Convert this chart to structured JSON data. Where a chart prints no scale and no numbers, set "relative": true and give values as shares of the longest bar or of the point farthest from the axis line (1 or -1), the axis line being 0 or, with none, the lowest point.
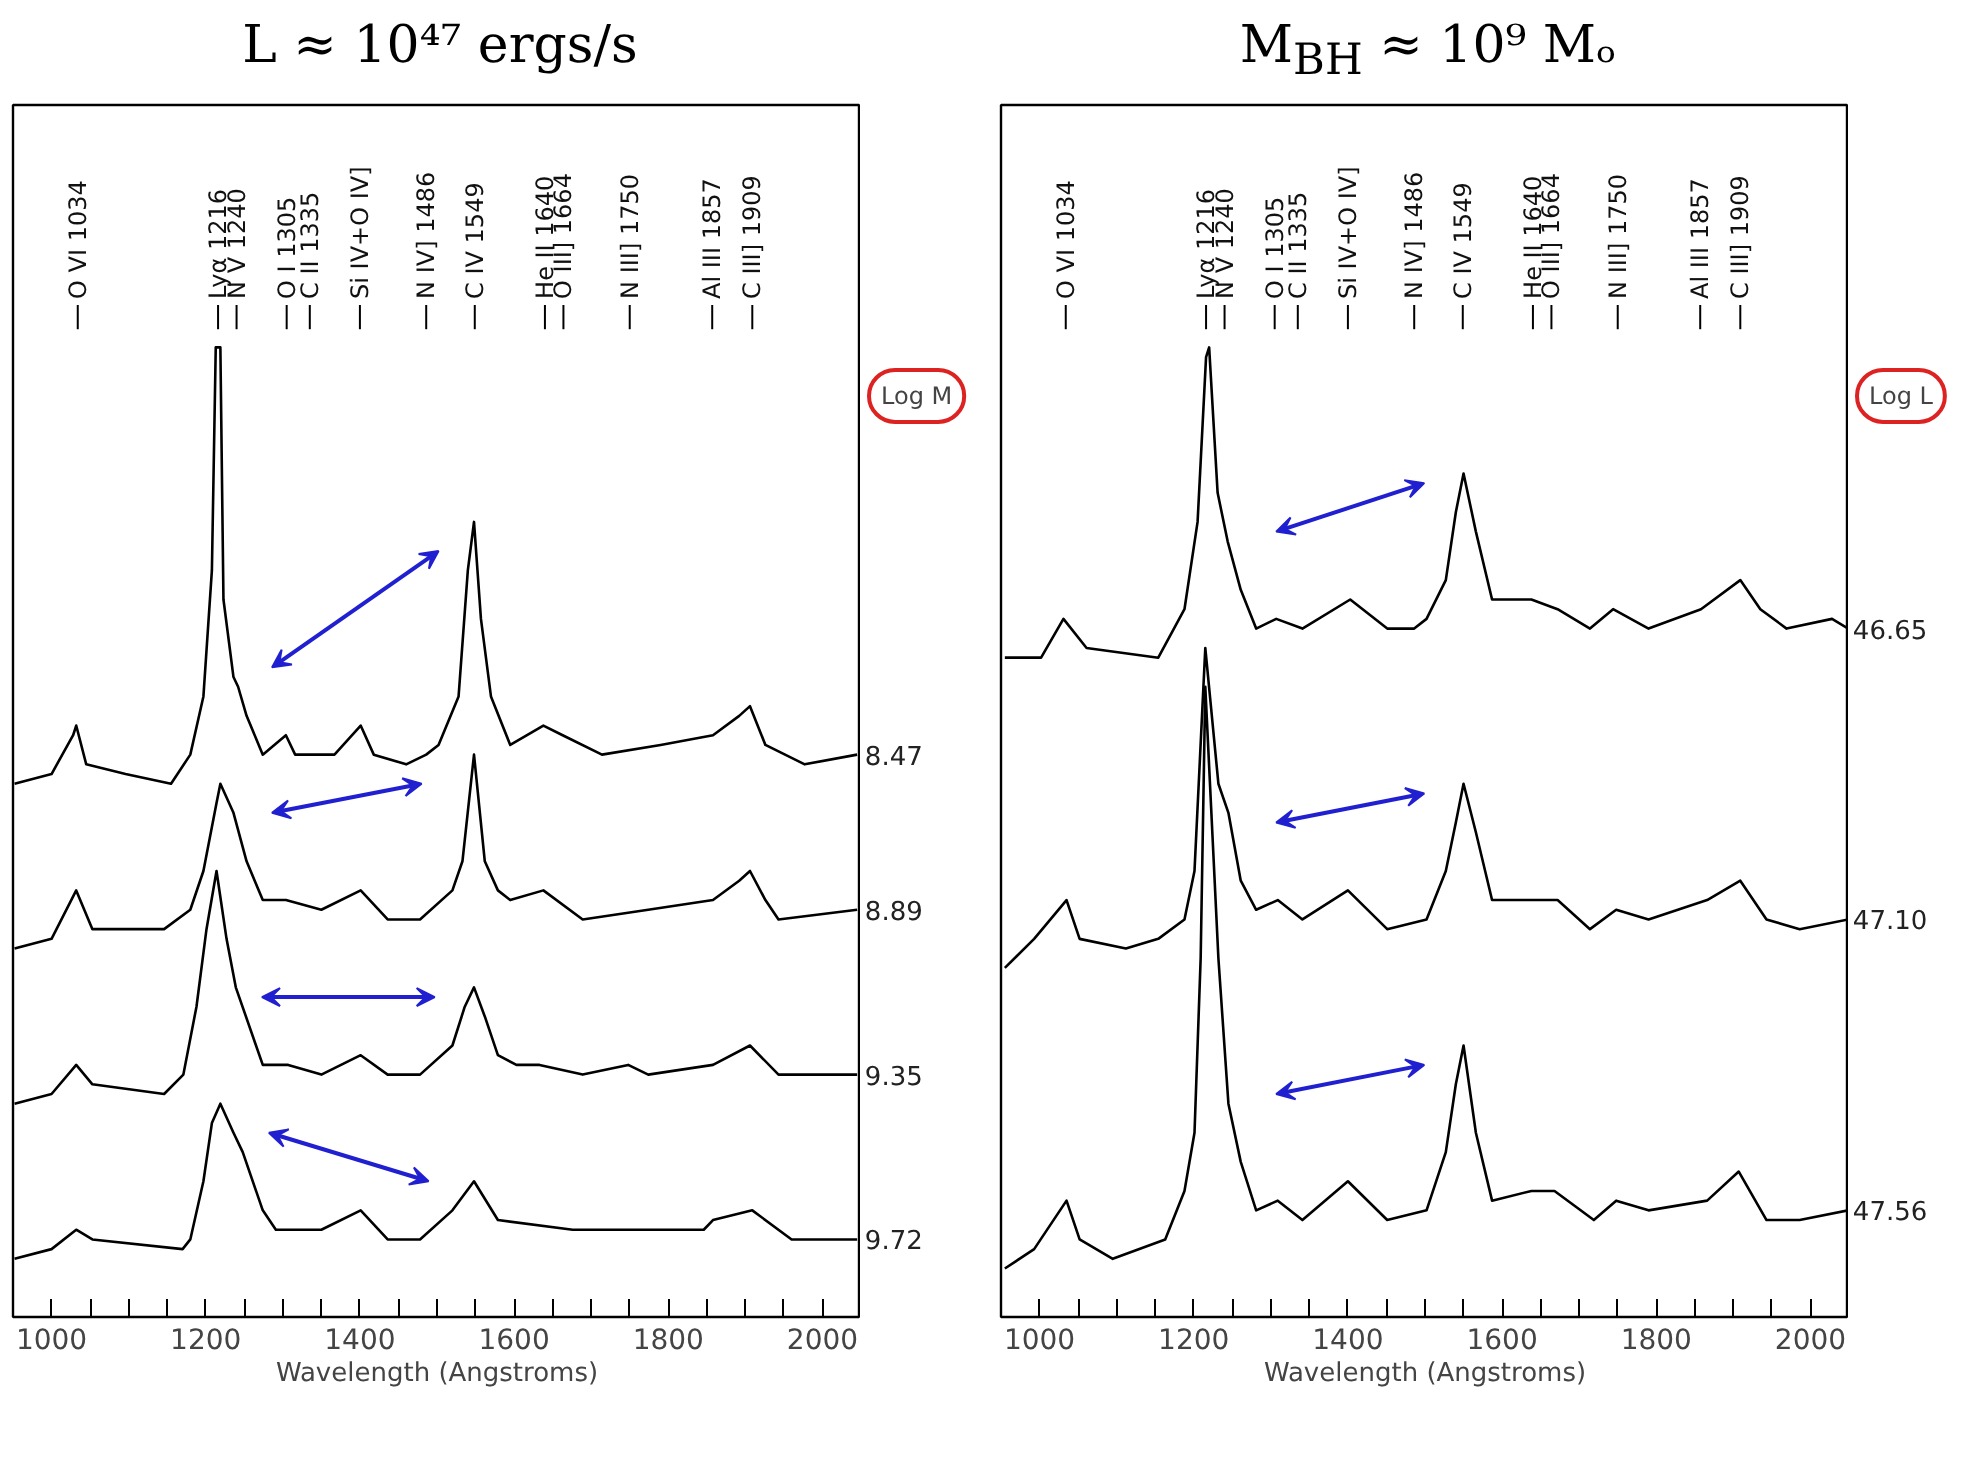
{
  "chart_data": [
    {
      "type": "line",
      "title": "L ≈ 10⁴⁷ ergs/s",
      "xlabel": "Wavelength (Angstroms)",
      "relative": true,
      "xlim": [
        950,
        2050
      ],
      "xticks": [
        1000,
        {
          "value": 1050,
          "label": null
        },
        {
          "value": 1100,
          "label": null
        },
        {
          "value": 1150,
          "label": null
        },
        1200,
        {
          "value": 1250,
          "label": null
        },
        {
          "value": 1300,
          "label": null
        },
        {
          "value": 1350,
          "label": null
        },
        1400,
        {
          "value": 1450,
          "label": null
        },
        {
          "value": 1500,
          "label": null
        },
        {
          "value": 1550,
          "label": null
        },
        1600,
        {
          "value": 1650,
          "label": null
        },
        {
          "value": 1700,
          "label": null
        },
        {
          "value": 1750,
          "label": null
        },
        1800,
        {
          "value": 1850,
          "label": null
        },
        {
          "value": 1900,
          "label": null
        },
        {
          "value": 1950,
          "label": null
        },
        2000
      ],
      "annotations": [
        "Log M",
        {
          "text": "O VI 1034",
          "x": 1034
        },
        {
          "text": "Lyα 1216",
          "x": 1216
        },
        {
          "text": "N V 1240",
          "x": 1240
        },
        {
          "text": "O I 1305",
          "x": 1305
        },
        {
          "text": "C II 1335",
          "x": 1335
        },
        {
          "text": "Si IV+O IV]",
          "x": 1400
        },
        {
          "text": "N IV] 1486",
          "x": 1486
        },
        {
          "text": "C IV 1549",
          "x": 1549
        },
        {
          "text": "He II 1640",
          "x": 1640
        },
        {
          "text": "O III] 1664",
          "x": 1664
        },
        {
          "text": "N III] 1750",
          "x": 1750
        },
        {
          "text": "Al III 1857",
          "x": 1857
        },
        {
          "text": "C III] 1909",
          "x": 1909
        }
      ],
      "series": [
        {
          "name": "8.47",
          "color": "#000000",
          "x": [
            952,
            1000,
            1028,
            1032,
            1045,
            1096,
            1155,
            1180,
            1197,
            1208,
            1213,
            1219,
            1223,
            1236,
            1242,
            1253,
            1274,
            1304,
            1316,
            1335,
            1367,
            1401,
            1418,
            1460,
            1486,
            1502,
            1528,
            1540,
            1548,
            1557,
            1570,
            1595,
            1638,
            1663,
            1714,
            1790,
            1858,
            1892,
            1906,
            1926,
            1977,
            2045
          ],
          "values": [
            0.55,
            0.56,
            0.6,
            0.61,
            0.57,
            0.56,
            0.55,
            0.58,
            0.64,
            0.77,
            1.0,
            1.0,
            0.74,
            0.66,
            0.65,
            0.62,
            0.58,
            0.6,
            0.58,
            0.58,
            0.58,
            0.61,
            0.58,
            0.57,
            0.58,
            0.59,
            0.64,
            0.77,
            0.82,
            0.72,
            0.64,
            0.59,
            0.61,
            0.6,
            0.58,
            0.59,
            0.6,
            0.62,
            0.63,
            0.59,
            0.57,
            0.58
          ]
        },
        {
          "name": "8.89",
          "color": "#000000",
          "x": [
            952,
            1000,
            1032,
            1053,
            1146,
            1180,
            1197,
            1214,
            1219,
            1236,
            1253,
            1274,
            1304,
            1350,
            1401,
            1436,
            1478,
            1520,
            1533,
            1548,
            1562,
            1579,
            1595,
            1638,
            1689,
            1774,
            1858,
            1892,
            1906,
            1926,
            1943,
            2045
          ],
          "values": [
            0.38,
            0.39,
            0.44,
            0.4,
            0.4,
            0.42,
            0.46,
            0.53,
            0.55,
            0.52,
            0.47,
            0.43,
            0.43,
            0.42,
            0.44,
            0.41,
            0.41,
            0.44,
            0.47,
            0.58,
            0.47,
            0.44,
            0.43,
            0.44,
            0.41,
            0.42,
            0.43,
            0.45,
            0.46,
            0.43,
            0.41,
            0.42
          ]
        },
        {
          "name": "9.35",
          "color": "#000000",
          "x": [
            952,
            1000,
            1032,
            1053,
            1146,
            1171,
            1188,
            1201,
            1214,
            1227,
            1239,
            1274,
            1307,
            1350,
            1401,
            1436,
            1478,
            1520,
            1536,
            1548,
            1562,
            1579,
            1603,
            1633,
            1689,
            1748,
            1774,
            1858,
            1906,
            1943,
            2045
          ],
          "values": [
            0.22,
            0.23,
            0.26,
            0.24,
            0.23,
            0.25,
            0.32,
            0.4,
            0.46,
            0.39,
            0.34,
            0.26,
            0.26,
            0.25,
            0.27,
            0.25,
            0.25,
            0.28,
            0.32,
            0.34,
            0.31,
            0.27,
            0.26,
            0.26,
            0.25,
            0.26,
            0.25,
            0.26,
            0.28,
            0.25,
            0.25
          ]
        },
        {
          "name": "9.72",
          "color": "#000000",
          "x": [
            952,
            1000,
            1032,
            1053,
            1170,
            1180,
            1197,
            1208,
            1219,
            1236,
            1248,
            1274,
            1291,
            1350,
            1401,
            1436,
            1478,
            1520,
            1548,
            1579,
            1676,
            1761,
            1846,
            1858,
            1909,
            1960,
            2045
          ],
          "values": [
            0.06,
            0.07,
            0.09,
            0.08,
            0.07,
            0.08,
            0.14,
            0.2,
            0.22,
            0.19,
            0.17,
            0.11,
            0.09,
            0.09,
            0.11,
            0.08,
            0.08,
            0.11,
            0.14,
            0.1,
            0.09,
            0.09,
            0.09,
            0.1,
            0.11,
            0.08,
            0.08
          ]
        }
      ]
    },
    {
      "type": "line",
      "title": "M$_{BH}$ ≈ 10⁹ Mₒ",
      "xlabel": "Wavelength (Angstroms)",
      "relative": true,
      "xlim": [
        950,
        2050
      ],
      "xticks": [
        1000,
        {
          "value": 1050,
          "label": null
        },
        {
          "value": 1100,
          "label": null
        },
        {
          "value": 1150,
          "label": null
        },
        1200,
        {
          "value": 1250,
          "label": null
        },
        {
          "value": 1300,
          "label": null
        },
        {
          "value": 1350,
          "label": null
        },
        1400,
        {
          "value": 1450,
          "label": null
        },
        {
          "value": 1500,
          "label": null
        },
        {
          "value": 1550,
          "label": null
        },
        1600,
        {
          "value": 1650,
          "label": null
        },
        {
          "value": 1700,
          "label": null
        },
        {
          "value": 1750,
          "label": null
        },
        1800,
        {
          "value": 1850,
          "label": null
        },
        {
          "value": 1900,
          "label": null
        },
        {
          "value": 1950,
          "label": null
        },
        2000
      ],
      "annotations": [
        "Log L",
        {
          "text": "O VI 1034",
          "x": 1034
        },
        {
          "text": "Lyα 1216",
          "x": 1216
        },
        {
          "text": "N V 1240",
          "x": 1240
        },
        {
          "text": "O I 1305",
          "x": 1305
        },
        {
          "text": "C II 1335",
          "x": 1335
        },
        {
          "text": "Si IV+O IV]",
          "x": 1400
        },
        {
          "text": "N IV] 1486",
          "x": 1486
        },
        {
          "text": "C IV 1549",
          "x": 1549
        },
        {
          "text": "He II 1640",
          "x": 1640
        },
        {
          "text": "O III] 1664",
          "x": 1664
        },
        {
          "text": "N III] 1750",
          "x": 1750
        },
        {
          "text": "Al III 1857",
          "x": 1857
        },
        {
          "text": "C III] 1909",
          "x": 1909
        }
      ],
      "series": [
        {
          "name": "46.65",
          "color": "#000000",
          "x": [
            955,
            1002,
            1031,
            1061,
            1154,
            1188,
            1205,
            1216,
            1220,
            1231,
            1244,
            1261,
            1281,
            1307,
            1341,
            1403,
            1451,
            1486,
            1502,
            1527,
            1540,
            1550,
            1566,
            1587,
            1638,
            1672,
            1714,
            1744,
            1790,
            1858,
            1909,
            1935,
            1969,
            2028,
            2049
          ],
          "values": [
            0.68,
            0.68,
            0.72,
            0.69,
            0.68,
            0.73,
            0.82,
            0.99,
            1.0,
            0.85,
            0.8,
            0.75,
            0.71,
            0.72,
            0.71,
            0.74,
            0.71,
            0.71,
            0.72,
            0.76,
            0.83,
            0.87,
            0.81,
            0.74,
            0.74,
            0.73,
            0.71,
            0.73,
            0.71,
            0.73,
            0.76,
            0.73,
            0.71,
            0.72,
            0.71
          ]
        },
        {
          "name": "47.10",
          "color": "#000000",
          "x": [
            955,
            993,
            1035,
            1052,
            1112,
            1154,
            1188,
            1201,
            1215,
            1232,
            1245,
            1261,
            1281,
            1309,
            1341,
            1400,
            1451,
            1502,
            1527,
            1540,
            1550,
            1566,
            1587,
            1638,
            1672,
            1714,
            1748,
            1790,
            1866,
            1909,
            1943,
            1986,
            2049
          ],
          "values": [
            0.36,
            0.39,
            0.43,
            0.39,
            0.38,
            0.39,
            0.41,
            0.46,
            0.69,
            0.55,
            0.52,
            0.45,
            0.42,
            0.43,
            0.41,
            0.44,
            0.4,
            0.41,
            0.46,
            0.51,
            0.55,
            0.5,
            0.43,
            0.43,
            0.43,
            0.4,
            0.42,
            0.41,
            0.43,
            0.45,
            0.41,
            0.4,
            0.41
          ]
        },
        {
          "name": "47.56",
          "color": "#000000",
          "x": [
            955,
            993,
            1035,
            1052,
            1095,
            1163,
            1188,
            1201,
            1209,
            1215,
            1232,
            1245,
            1261,
            1281,
            1309,
            1341,
            1400,
            1451,
            1502,
            1527,
            1540,
            1550,
            1566,
            1587,
            1638,
            1668,
            1719,
            1748,
            1790,
            1866,
            1907,
            1943,
            1986,
            2049
          ],
          "values": [
            0.05,
            0.07,
            0.12,
            0.08,
            0.06,
            0.08,
            0.13,
            0.19,
            0.37,
            0.65,
            0.37,
            0.22,
            0.16,
            0.11,
            0.12,
            0.1,
            0.14,
            0.1,
            0.11,
            0.17,
            0.24,
            0.28,
            0.19,
            0.12,
            0.13,
            0.13,
            0.1,
            0.12,
            0.11,
            0.12,
            0.15,
            0.1,
            0.1,
            0.11
          ]
        }
      ]
    }
  ]
}
